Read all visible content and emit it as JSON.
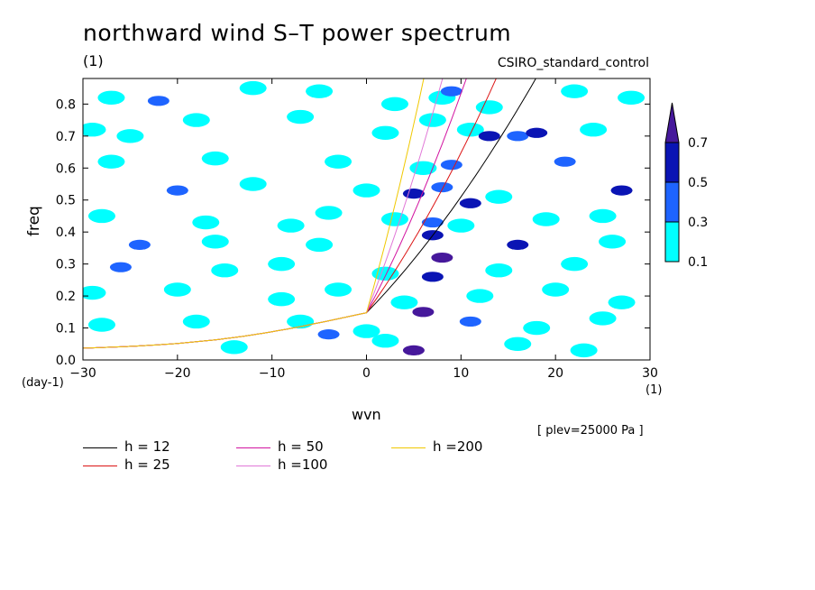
{
  "chart_data": {
    "type": "heatmap",
    "title": "northward wind S–T power spectrum",
    "subtitle_left": "(1)",
    "subtitle_right": "CSIRO_standard_control",
    "xlabel": "wvn",
    "ylabel": "freq",
    "x_unit_label": "(1)",
    "y_unit_label": "(day-1)",
    "annotation": "[ plev=25000 Pa ]",
    "xlim": [
      -30,
      30
    ],
    "ylim": [
      0,
      0.88
    ],
    "x_ticks": [
      -30,
      -20,
      -10,
      0,
      10,
      20,
      30
    ],
    "x_tick_labels": [
      "−30",
      "−20",
      "−10",
      "0",
      "10",
      "20",
      "30"
    ],
    "y_ticks": [
      0,
      0.1,
      0.2,
      0.3,
      0.4,
      0.5,
      0.6,
      0.7,
      0.8
    ],
    "y_tick_labels": [
      "0.0",
      "0.1",
      "0.2",
      "0.3",
      "0.4",
      "0.5",
      "0.6",
      "0.7",
      "0.8"
    ],
    "colorbar": {
      "levels": [
        "0.1",
        "0.3",
        "0.5",
        "0.7"
      ],
      "colors": [
        "#00ffff",
        "#1e64ff",
        "#0a14b4",
        "#46189b"
      ]
    },
    "dispersion_curves": [
      {
        "name": "h = 12",
        "h": 12,
        "color": "#000000"
      },
      {
        "name": "h = 25",
        "h": 25,
        "color": "#dc1414"
      },
      {
        "name": "h = 50",
        "h": 50,
        "color": "#d214a0"
      },
      {
        "name": "h =100",
        "h": 100,
        "color": "#e178d7"
      },
      {
        "name": "h =200",
        "h": 200,
        "color": "#f0c800"
      }
    ],
    "cells": [
      {
        "x": -27,
        "y": 0.82,
        "level": 0
      },
      {
        "x": -22,
        "y": 0.81,
        "level": 1
      },
      {
        "x": -12,
        "y": 0.85,
        "level": 0
      },
      {
        "x": -5,
        "y": 0.84,
        "level": 0
      },
      {
        "x": 3,
        "y": 0.8,
        "level": 0
      },
      {
        "x": 8,
        "y": 0.82,
        "level": 0
      },
      {
        "x": 9,
        "y": 0.84,
        "level": 1
      },
      {
        "x": 13,
        "y": 0.79,
        "level": 0
      },
      {
        "x": 22,
        "y": 0.84,
        "level": 0
      },
      {
        "x": 28,
        "y": 0.82,
        "level": 0
      },
      {
        "x": -29,
        "y": 0.72,
        "level": 0
      },
      {
        "x": -25,
        "y": 0.7,
        "level": 0
      },
      {
        "x": -18,
        "y": 0.75,
        "level": 0
      },
      {
        "x": -7,
        "y": 0.76,
        "level": 0
      },
      {
        "x": 2,
        "y": 0.71,
        "level": 0
      },
      {
        "x": 7,
        "y": 0.75,
        "level": 0
      },
      {
        "x": 11,
        "y": 0.72,
        "level": 0
      },
      {
        "x": 13,
        "y": 0.7,
        "level": 2
      },
      {
        "x": 16,
        "y": 0.7,
        "level": 1
      },
      {
        "x": 18,
        "y": 0.71,
        "level": 2
      },
      {
        "x": 24,
        "y": 0.72,
        "level": 0
      },
      {
        "x": -27,
        "y": 0.62,
        "level": 0
      },
      {
        "x": -16,
        "y": 0.63,
        "level": 0
      },
      {
        "x": -3,
        "y": 0.62,
        "level": 0
      },
      {
        "x": 6,
        "y": 0.6,
        "level": 0
      },
      {
        "x": 9,
        "y": 0.61,
        "level": 1
      },
      {
        "x": 21,
        "y": 0.62,
        "level": 1
      },
      {
        "x": -20,
        "y": 0.53,
        "level": 1
      },
      {
        "x": -12,
        "y": 0.55,
        "level": 0
      },
      {
        "x": 0,
        "y": 0.53,
        "level": 0
      },
      {
        "x": 5,
        "y": 0.52,
        "level": 2
      },
      {
        "x": 8,
        "y": 0.54,
        "level": 1
      },
      {
        "x": 11,
        "y": 0.49,
        "level": 2
      },
      {
        "x": 14,
        "y": 0.51,
        "level": 0
      },
      {
        "x": 27,
        "y": 0.53,
        "level": 2
      },
      {
        "x": -28,
        "y": 0.45,
        "level": 0
      },
      {
        "x": -17,
        "y": 0.43,
        "level": 0
      },
      {
        "x": -8,
        "y": 0.42,
        "level": 0
      },
      {
        "x": -4,
        "y": 0.46,
        "level": 0
      },
      {
        "x": 3,
        "y": 0.44,
        "level": 0
      },
      {
        "x": 7,
        "y": 0.43,
        "level": 1
      },
      {
        "x": 10,
        "y": 0.42,
        "level": 0
      },
      {
        "x": 19,
        "y": 0.44,
        "level": 0
      },
      {
        "x": 25,
        "y": 0.45,
        "level": 0
      },
      {
        "x": -24,
        "y": 0.36,
        "level": 1
      },
      {
        "x": -16,
        "y": 0.37,
        "level": 0
      },
      {
        "x": -5,
        "y": 0.36,
        "level": 0
      },
      {
        "x": 7,
        "y": 0.39,
        "level": 2
      },
      {
        "x": 16,
        "y": 0.36,
        "level": 2
      },
      {
        "x": 26,
        "y": 0.37,
        "level": 0
      },
      {
        "x": -26,
        "y": 0.29,
        "level": 1
      },
      {
        "x": -15,
        "y": 0.28,
        "level": 0
      },
      {
        "x": -9,
        "y": 0.3,
        "level": 0
      },
      {
        "x": 2,
        "y": 0.27,
        "level": 0
      },
      {
        "x": 8,
        "y": 0.32,
        "level": 3
      },
      {
        "x": 7,
        "y": 0.26,
        "level": 2
      },
      {
        "x": 14,
        "y": 0.28,
        "level": 0
      },
      {
        "x": 22,
        "y": 0.3,
        "level": 0
      },
      {
        "x": -29,
        "y": 0.21,
        "level": 0
      },
      {
        "x": -20,
        "y": 0.22,
        "level": 0
      },
      {
        "x": -9,
        "y": 0.19,
        "level": 0
      },
      {
        "x": -3,
        "y": 0.22,
        "level": 0
      },
      {
        "x": 4,
        "y": 0.18,
        "level": 0
      },
      {
        "x": 12,
        "y": 0.2,
        "level": 0
      },
      {
        "x": 20,
        "y": 0.22,
        "level": 0
      },
      {
        "x": 27,
        "y": 0.18,
        "level": 0
      },
      {
        "x": -28,
        "y": 0.11,
        "level": 0
      },
      {
        "x": -18,
        "y": 0.12,
        "level": 0
      },
      {
        "x": -7,
        "y": 0.12,
        "level": 0
      },
      {
        "x": -4,
        "y": 0.08,
        "level": 1
      },
      {
        "x": 0,
        "y": 0.09,
        "level": 0
      },
      {
        "x": 6,
        "y": 0.15,
        "level": 3
      },
      {
        "x": 11,
        "y": 0.12,
        "level": 1
      },
      {
        "x": 18,
        "y": 0.1,
        "level": 0
      },
      {
        "x": 25,
        "y": 0.13,
        "level": 0
      },
      {
        "x": 5,
        "y": 0.03,
        "level": 3
      },
      {
        "x": 2,
        "y": 0.06,
        "level": 0
      },
      {
        "x": 16,
        "y": 0.05,
        "level": 0
      },
      {
        "x": -14,
        "y": 0.04,
        "level": 0
      },
      {
        "x": 23,
        "y": 0.03,
        "level": 0
      }
    ]
  }
}
